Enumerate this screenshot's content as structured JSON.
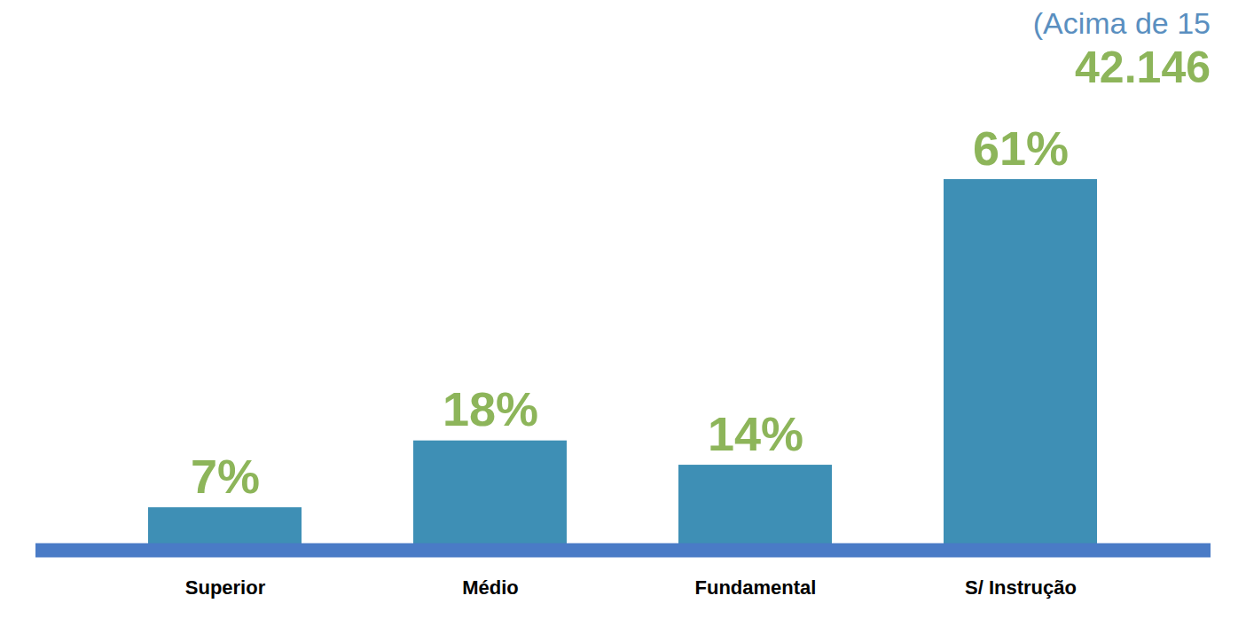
{
  "chart_data": {
    "type": "bar",
    "subtitle": "(Acima de 15",
    "annotations": [
      "42.146"
    ],
    "categories": [
      "Superior",
      "Médio",
      "Fundamental",
      "S/ Instrução"
    ],
    "values": [
      7,
      18,
      14,
      61
    ],
    "value_labels": [
      "7%",
      "18%",
      "14%",
      "61%"
    ],
    "color": "#3e8fb5",
    "data_labels": true,
    "tick_labels": "x"
  }
}
